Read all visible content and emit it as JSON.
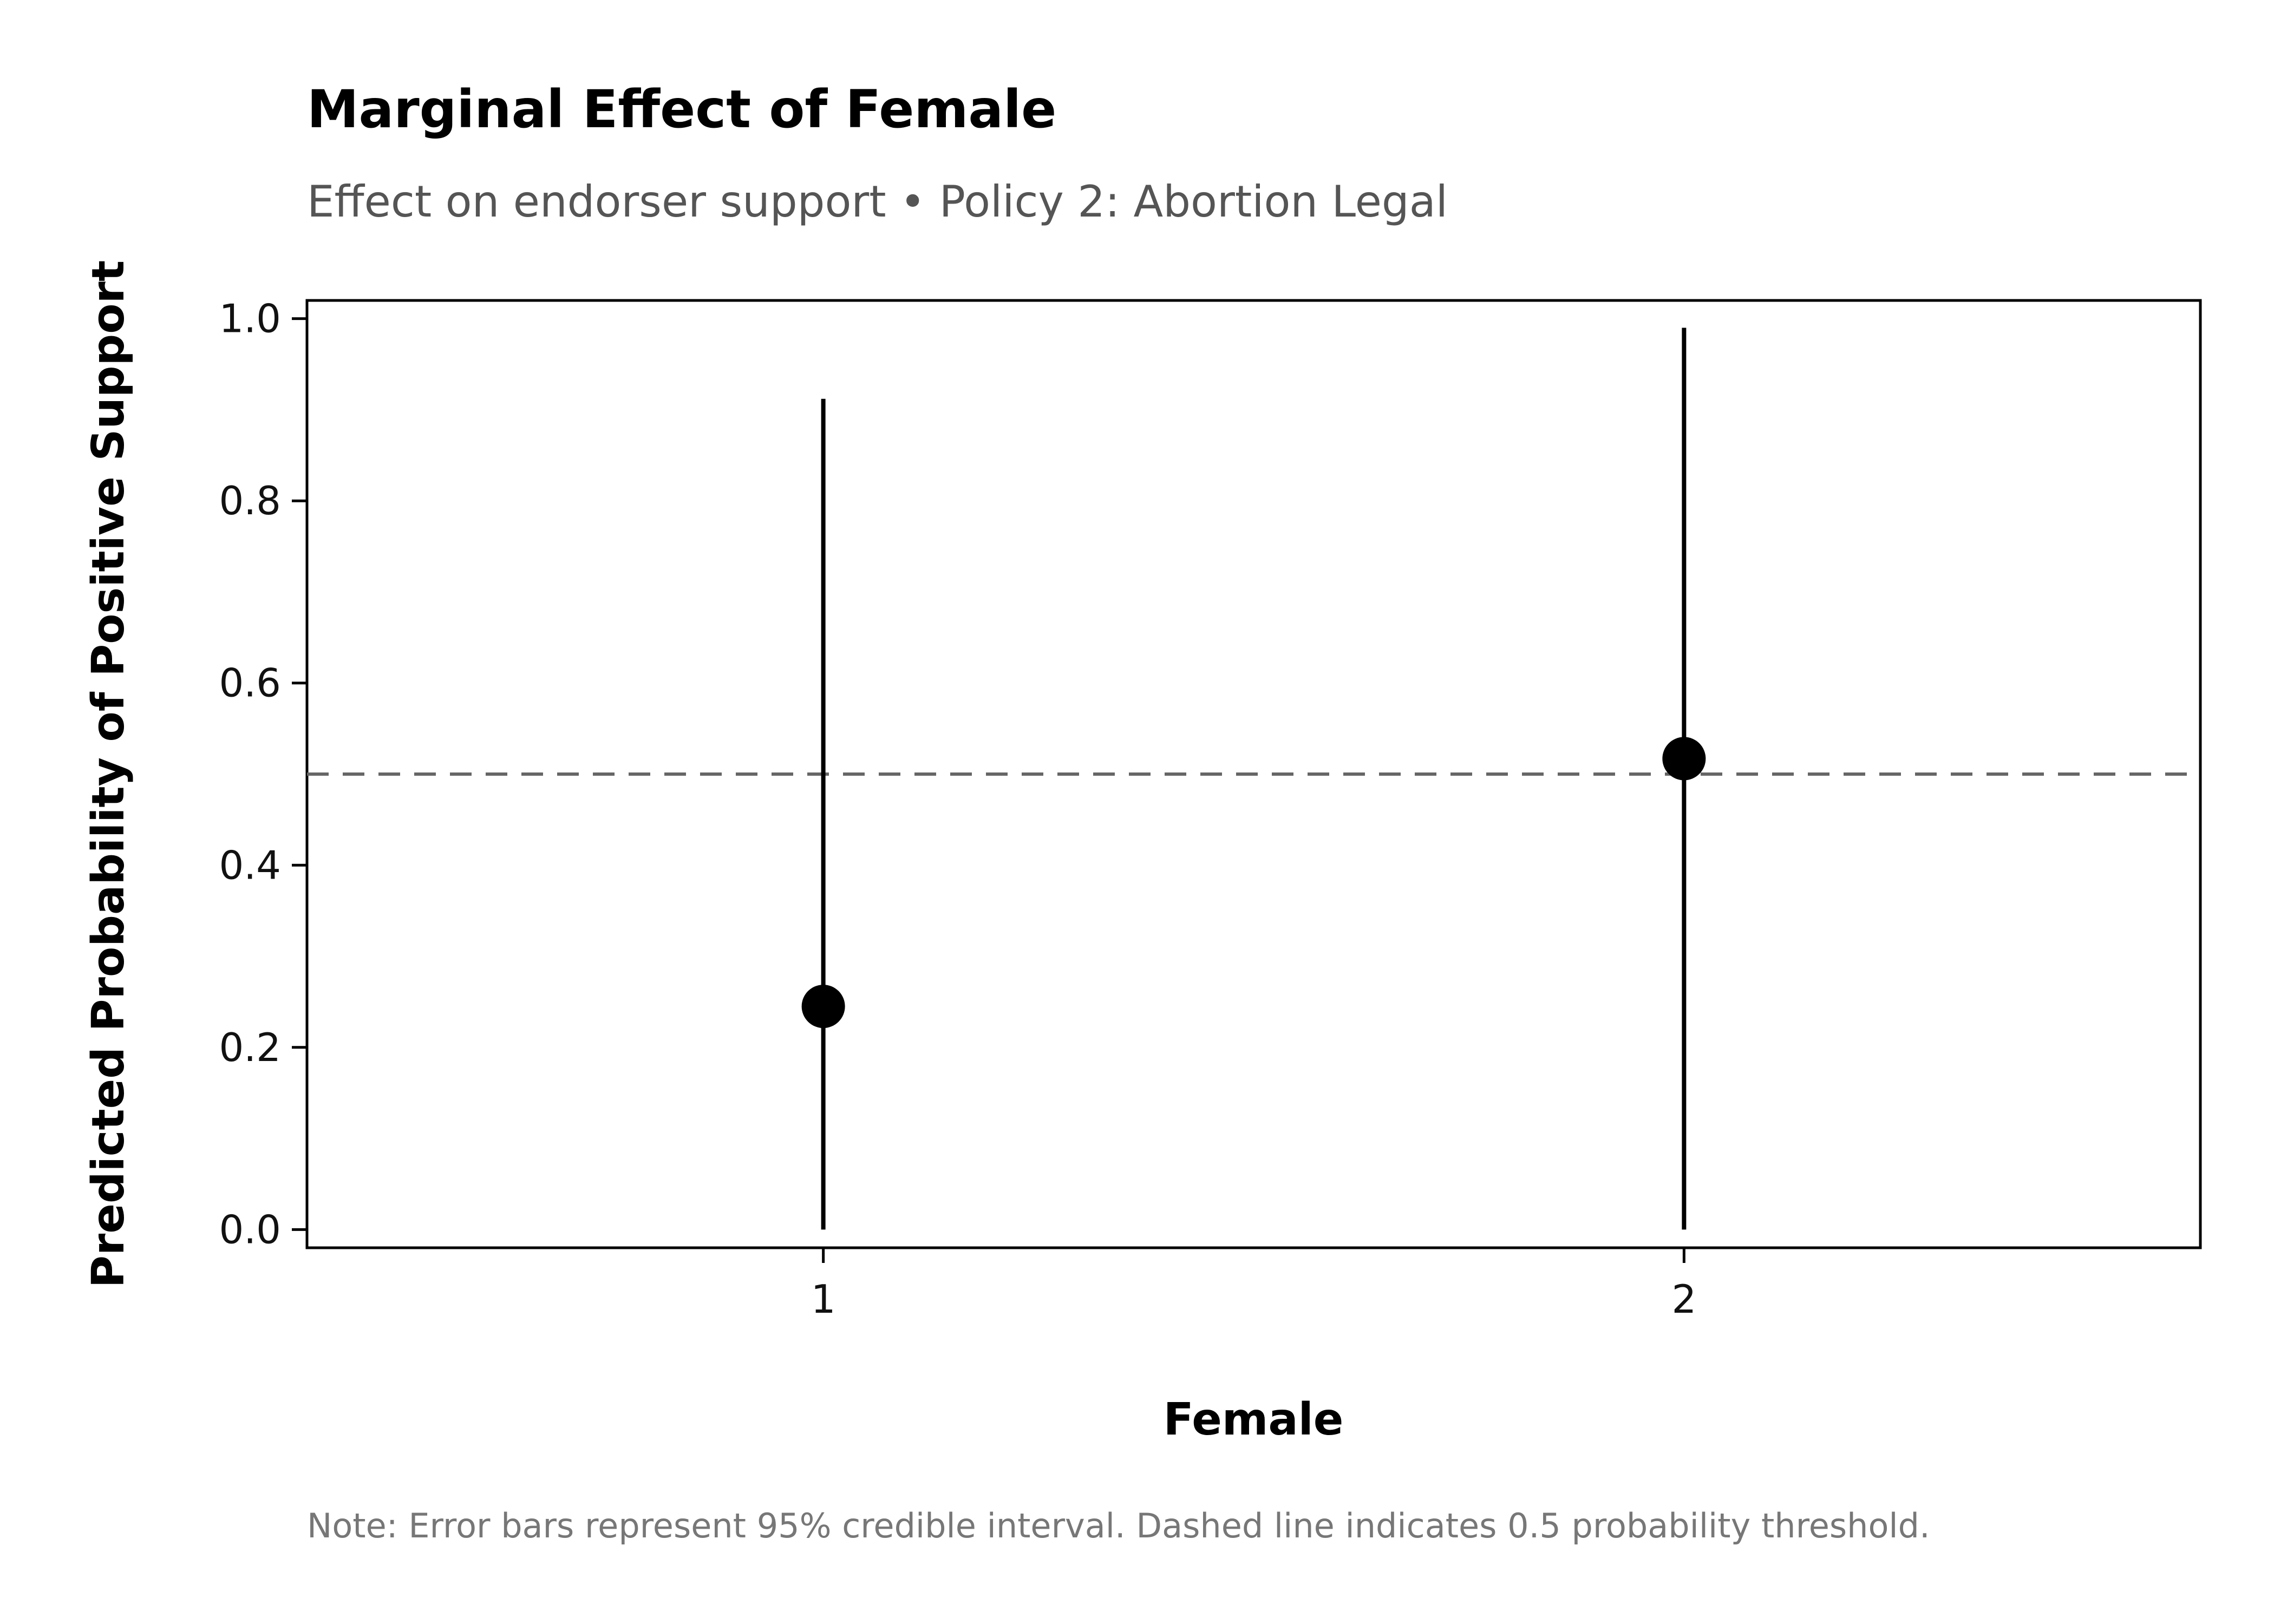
{
  "chart_data": {
    "type": "scatter",
    "title": "Marginal Effect of Female",
    "subtitle": "Effect on endorser support • Policy 2: Abortion Legal",
    "xlabel": "Female",
    "ylabel": "Predicted Probability of Positive Support",
    "categories": [
      "1",
      "2"
    ],
    "series": [
      {
        "values": [
          0.245,
          0.517
        ],
        "lower": [
          0.0,
          0.0
        ],
        "upper": [
          0.912,
          0.99
        ]
      }
    ],
    "ylim": [
      -0.02,
      1.02
    ],
    "yticks": [
      0.0,
      0.2,
      0.4,
      0.6,
      0.8,
      1.0
    ],
    "ytick_labels": [
      "0.0",
      "0.2",
      "0.4",
      "0.6",
      "0.8",
      "1.0"
    ],
    "reference_line": 0.5,
    "grid": false,
    "note": "Note: Error bars represent 95% credible interval. Dashed line indicates 0.5 probability threshold.",
    "colors": {
      "points": "#000000",
      "reference": "#666666",
      "axis": "#000000"
    }
  }
}
